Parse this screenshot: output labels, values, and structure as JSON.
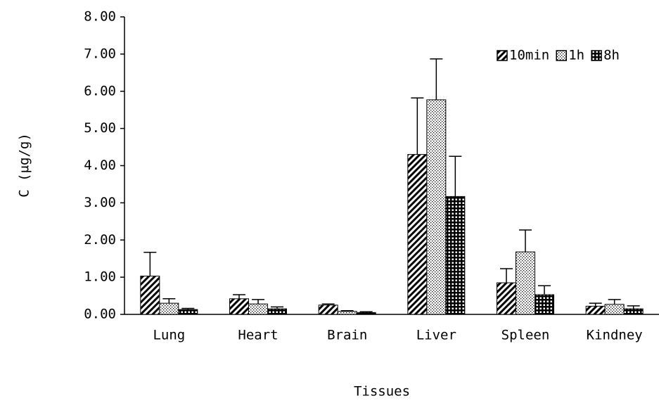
{
  "chart_data": {
    "type": "bar",
    "x_label": "Tissues",
    "y_label": "C (μg/g)",
    "categories": [
      "Lung",
      "Heart",
      "Brain",
      "Liver",
      "Spleen",
      "Kindney"
    ],
    "series": [
      {
        "name": "10min",
        "color": "#000000",
        "pattern": "diagonal",
        "values": [
          1.03,
          0.42,
          0.25,
          4.3,
          0.85,
          0.22
        ],
        "errors": [
          0.64,
          0.11,
          0.03,
          1.52,
          0.38,
          0.08
        ]
      },
      {
        "name": "1h",
        "color": "#000000",
        "pattern": "dots",
        "values": [
          0.3,
          0.28,
          0.08,
          5.77,
          1.68,
          0.27
        ],
        "errors": [
          0.12,
          0.12,
          0.02,
          1.1,
          0.59,
          0.13
        ]
      },
      {
        "name": "8h",
        "color": "#000000",
        "pattern": "grid",
        "values": [
          0.13,
          0.15,
          0.05,
          3.17,
          0.53,
          0.15
        ],
        "errors": [
          0.03,
          0.05,
          0.02,
          1.08,
          0.24,
          0.08
        ]
      }
    ],
    "ylim": [
      0,
      8
    ],
    "yticks": [
      {
        "value": 0,
        "label": "0.00"
      },
      {
        "value": 1,
        "label": "1.00"
      },
      {
        "value": 2,
        "label": "2.00"
      },
      {
        "value": 3,
        "label": "3.00"
      },
      {
        "value": 4,
        "label": "4.00"
      },
      {
        "value": 5,
        "label": "5.00"
      },
      {
        "value": 6,
        "label": "6.00"
      },
      {
        "value": 7,
        "label": "7.00"
      },
      {
        "value": 8,
        "label": "8.00"
      }
    ],
    "grid": false,
    "legend": "top-right"
  }
}
